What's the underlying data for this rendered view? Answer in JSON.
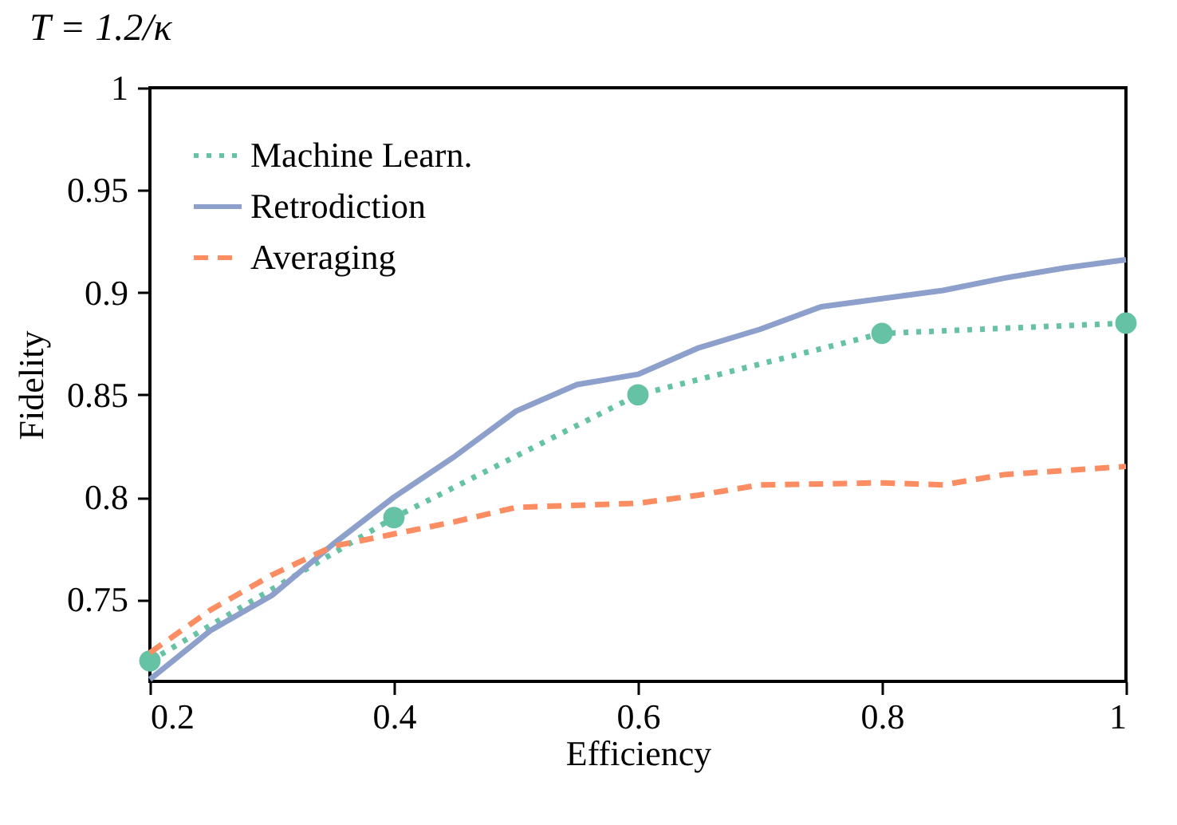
{
  "chart_data": {
    "type": "line",
    "title": "T = 1.2/κ",
    "xlabel": "Efficiency",
    "ylabel": "Fidelity",
    "xlim": [
      0.2,
      1
    ],
    "ylim": [
      0.71,
      1
    ],
    "xticks": [
      0.2,
      0.4,
      0.6,
      0.8,
      1
    ],
    "yticks": [
      0.75,
      0.8,
      0.85,
      0.9,
      0.95,
      1
    ],
    "legend": "top left",
    "series": [
      {
        "name": "Machine Learn.",
        "color": "#66c2a5",
        "line_style": "dotted",
        "marker": "circle",
        "x": [
          0.2,
          0.4,
          0.6,
          0.8,
          1
        ],
        "values": [
          0.72,
          0.79,
          0.85,
          0.88,
          0.885
        ]
      },
      {
        "name": "Retrodiction",
        "color": "#8da0cb",
        "line_style": "solid",
        "marker": "none",
        "x": [
          0.2,
          0.25,
          0.3,
          0.35,
          0.4,
          0.45,
          0.5,
          0.55,
          0.6,
          0.65,
          0.7,
          0.75,
          0.8,
          0.85,
          0.9,
          0.95,
          1
        ],
        "values": [
          0.711,
          0.735,
          0.752,
          0.777,
          0.8,
          0.82,
          0.842,
          0.855,
          0.86,
          0.873,
          0.882,
          0.893,
          0.897,
          0.901,
          0.907,
          0.912,
          0.916
        ]
      },
      {
        "name": "Averaging",
        "color": "#fc8d62",
        "line_style": "dashed",
        "marker": "none",
        "x": [
          0.2,
          0.25,
          0.3,
          0.35,
          0.4,
          0.45,
          0.5,
          0.6,
          0.65,
          0.7,
          0.8,
          0.85,
          0.9,
          1
        ],
        "values": [
          0.724,
          0.745,
          0.762,
          0.776,
          0.782,
          0.788,
          0.795,
          0.797,
          0.801,
          0.806,
          0.807,
          0.806,
          0.811,
          0.815
        ]
      }
    ]
  }
}
